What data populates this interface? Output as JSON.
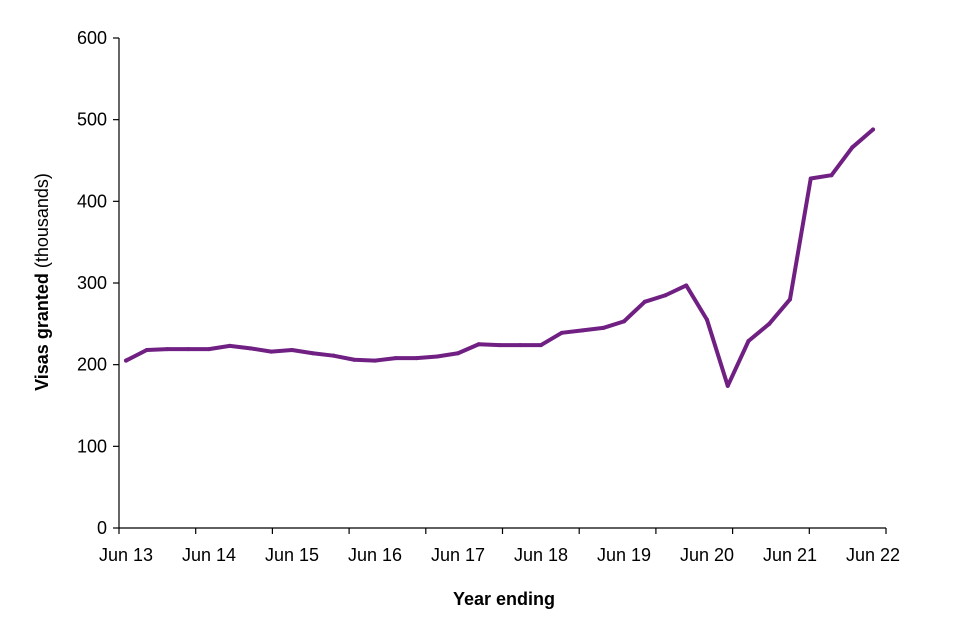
{
  "chart_data": {
    "type": "line",
    "title": "",
    "xlabel": "Year ending",
    "ylabel_bold": "Visas granted",
    "ylabel_rest": " (thousands)",
    "ylim": [
      0,
      600
    ],
    "yticks": [
      0,
      100,
      200,
      300,
      400,
      500,
      600
    ],
    "xtick_labels": [
      "Jun 13",
      "Jun 14",
      "Jun 15",
      "Jun 16",
      "Jun 17",
      "Jun 18",
      "Jun 19",
      "Jun 20",
      "Jun 21",
      "Jun 22"
    ],
    "grid": false,
    "legend": "none",
    "line_color": "#702082",
    "series": [
      {
        "values": [
          205,
          218,
          219,
          219,
          219,
          223,
          220,
          216,
          218,
          214,
          211,
          206,
          205,
          208,
          208,
          210,
          214,
          225,
          224,
          224,
          224,
          239,
          242,
          245,
          253,
          277,
          285,
          297,
          255,
          174,
          229,
          250,
          280,
          428,
          432,
          466,
          488
        ]
      }
    ]
  }
}
